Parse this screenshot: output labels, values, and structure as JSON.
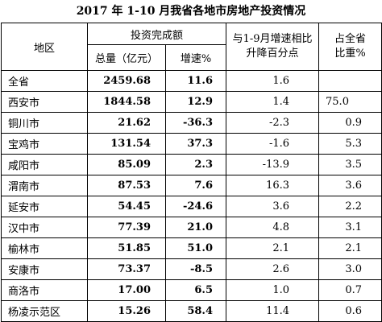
{
  "header": {
    "title": "2017 年 1-10 月我省各地市房地产投资情况"
  },
  "table": {
    "columns": {
      "region": "地区",
      "investment": "投资完成额",
      "total": "总量（亿元）",
      "growth": "增速%",
      "change": "与1-9月增速相比升降百分点",
      "share": "占全省比重%"
    },
    "rows": [
      [
        "全省",
        "2459.68",
        "11.6",
        "1.6",
        null
      ],
      [
        "西安市",
        "1844.58",
        "12.9",
        "1.4",
        "75.0"
      ],
      [
        "铜川市",
        "21.62",
        "-36.3",
        "-2.3",
        "0.9"
      ],
      [
        "宝鸡市",
        "131.54",
        "37.3",
        "-1.6",
        "5.3"
      ],
      [
        "咸阳市",
        "85.09",
        "2.3",
        "-13.9",
        "3.5"
      ],
      [
        "渭南市",
        "87.53",
        "7.6",
        "16.3",
        "3.6"
      ],
      [
        "延安市",
        "54.45",
        "-24.6",
        "3.6",
        "2.2"
      ],
      [
        "汉中市",
        "77.39",
        "21.0",
        "4.8",
        "3.1"
      ],
      [
        "榆林市",
        "51.85",
        "51.0",
        "2.1",
        "2.1"
      ],
      [
        "安康市",
        "73.37",
        "-8.5",
        "2.6",
        "3.0"
      ],
      [
        "商洛市",
        "17.00",
        "6.5",
        "1.0",
        "0.7"
      ],
      [
        "杨凌示范区",
        "15.26",
        "58.4",
        "11.4",
        "0.6"
      ]
    ]
  }
}
